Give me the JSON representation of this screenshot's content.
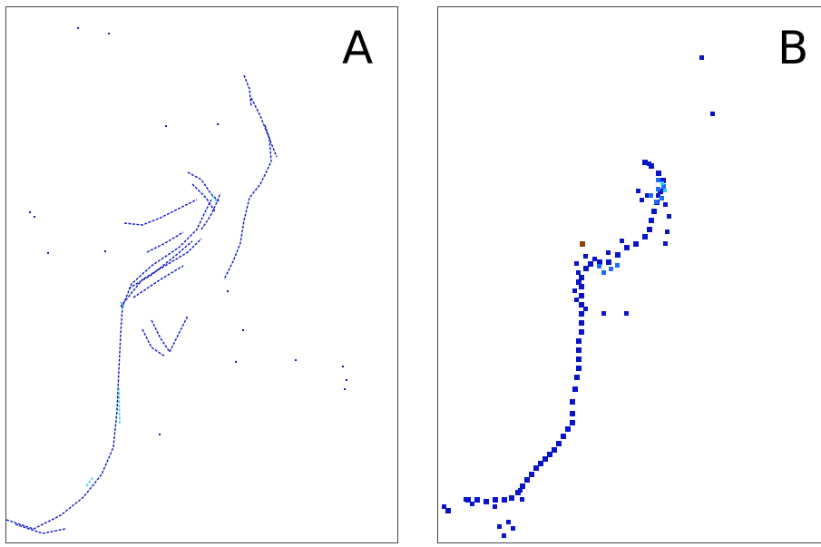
{
  "panels": [
    {
      "label": "A"
    },
    {
      "label": "B"
    }
  ],
  "colors": {
    "low": "#0a14c8",
    "mid": "#1e6cff",
    "high": "#2fd3e8",
    "outlier": "#8b4513",
    "frame": "#444444",
    "background": "#ffffff"
  }
}
